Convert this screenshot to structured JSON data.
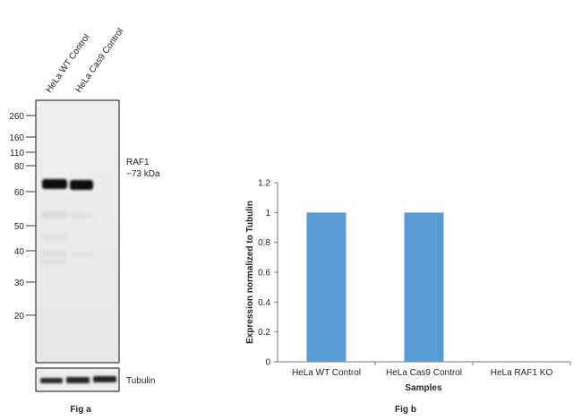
{
  "fig_a": {
    "caption": "Fig a",
    "lane_labels": [
      "HeLa WT Control",
      "HeLa Cas9 Control"
    ],
    "marker_labels": [
      "260",
      "160",
      "110",
      "80",
      "60",
      "50",
      "40",
      "30",
      "20"
    ],
    "target_name": "RAF1",
    "target_size": "~73 kDa",
    "loading_control": "Tubulin"
  },
  "fig_b": {
    "caption": "Fig b"
  },
  "chart_data": {
    "type": "bar",
    "categories": [
      "HeLa WT Control",
      "HeLa Cas9 Control",
      "HeLa RAF1 KO"
    ],
    "values": [
      1,
      1,
      0
    ],
    "xlabel": "Samples",
    "ylabel": "Expression normalized to Tubulin",
    "ylim": [
      0,
      1.2
    ],
    "yticks": [
      "0",
      "0.2",
      "0.4",
      "0.6",
      "0.8",
      "1",
      "1.2"
    ],
    "bar_color": "#5b9bd5",
    "grid": false
  }
}
